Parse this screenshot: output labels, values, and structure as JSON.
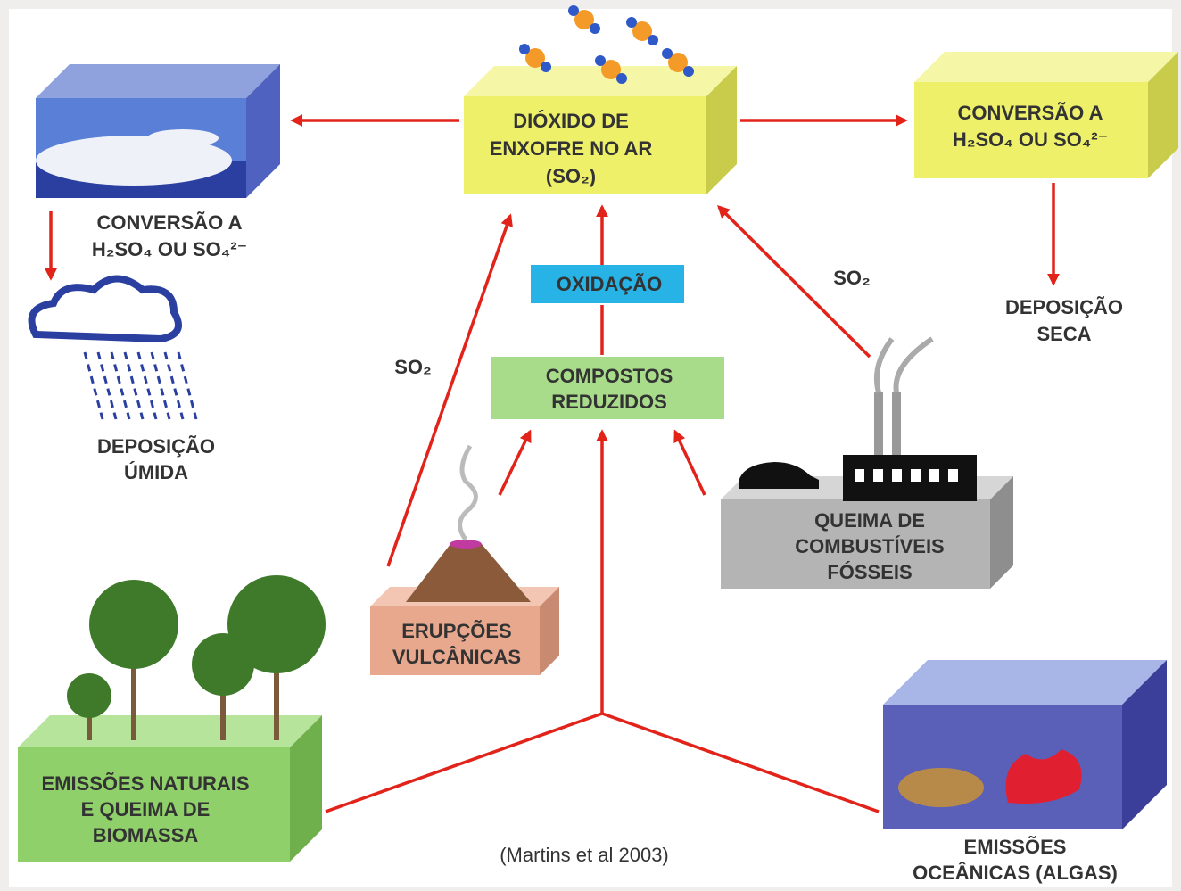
{
  "nodes": {
    "so2_air": {
      "lines": [
        "DIÓXIDO DE",
        "ENXOFRE NO AR",
        "(SO₂)"
      ]
    },
    "conversion_right": {
      "lines": [
        "CONVERSÃO A",
        "H₂SO₄ OU SO₄²⁻"
      ]
    },
    "conversion_left": {
      "lines": [
        "CONVERSÃO A",
        "H₂SO₄ OU SO₄²⁻"
      ]
    },
    "wet_deposition": {
      "lines": [
        "DEPOSIÇÃO",
        "ÚMIDA"
      ]
    },
    "dry_deposition": {
      "lines": [
        "DEPOSIÇÃO",
        "SECA"
      ]
    },
    "oxidation": {
      "lines": [
        "OXIDAÇÃO"
      ]
    },
    "reduced_compounds": {
      "lines": [
        "COMPOSTOS",
        "REDUZIDOS"
      ]
    },
    "volcanic": {
      "lines": [
        "ERUPÇÕES",
        "VULCÂNICAS"
      ]
    },
    "fossil": {
      "lines": [
        "QUEIMA DE",
        "COMBUSTÍVEIS",
        "FÓSSEIS"
      ]
    },
    "natural": {
      "lines": [
        "EMISSÕES NATURAIS",
        "E QUEIMA DE",
        "BIOMASSA"
      ]
    },
    "ocean": {
      "lines": [
        "EMISSÕES",
        "OCEÂNICAS (ALGAS)"
      ]
    },
    "so2_left": {
      "lines": [
        "SO₂"
      ]
    },
    "so2_right": {
      "lines": [
        "SO₂"
      ]
    }
  },
  "citation": "(Martins et al 2003)"
}
